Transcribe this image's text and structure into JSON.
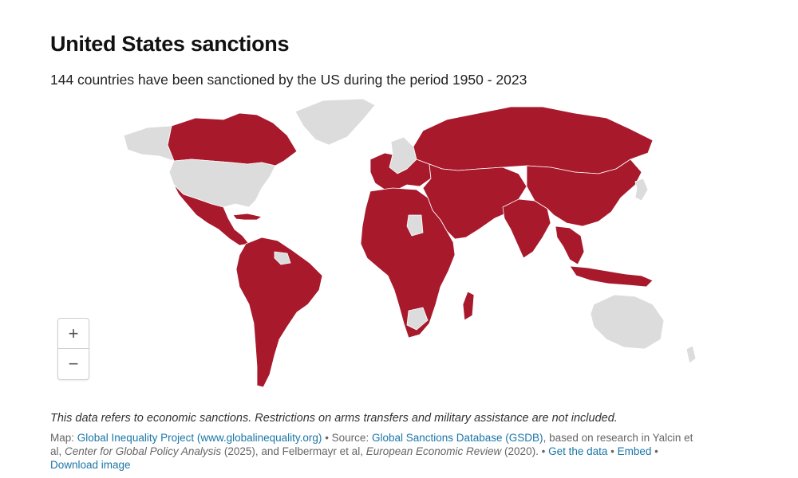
{
  "title": "United States sanctions",
  "subtitle": "144 countries have been sanctioned by the US during the period 1950 - 2023",
  "map": {
    "colors": {
      "sanctioned": "#a8192c",
      "not_sanctioned": "#dcdcdc",
      "border": "#ffffff"
    },
    "legend_values": {
      "sanctioned_count": 144,
      "period": "1950 - 2023"
    }
  },
  "zoom": {
    "in_label": "+",
    "out_label": "−"
  },
  "note": "This data refers to economic sanctions. Restrictions on arms transfers and military assistance are not included.",
  "footer": {
    "map_prefix": "Map: ",
    "map_link": "Global Inequality Project (www.globalinequality.org)",
    "sep1": " • Source: ",
    "source_link": "Global Sanctions Database (GSDB)",
    "source_rest_1": ", based on research in Yalcin et al, ",
    "source_journal_1": "Center for Global Policy Analysis",
    "source_rest_2": " (2025), and Felbermayr et al, ",
    "source_journal_2": "European Economic Review",
    "source_rest_3": " (2020). • ",
    "get_data": "Get the data",
    "sep2": " • ",
    "embed": "Embed",
    "sep3": " • ",
    "download": "Download image"
  }
}
